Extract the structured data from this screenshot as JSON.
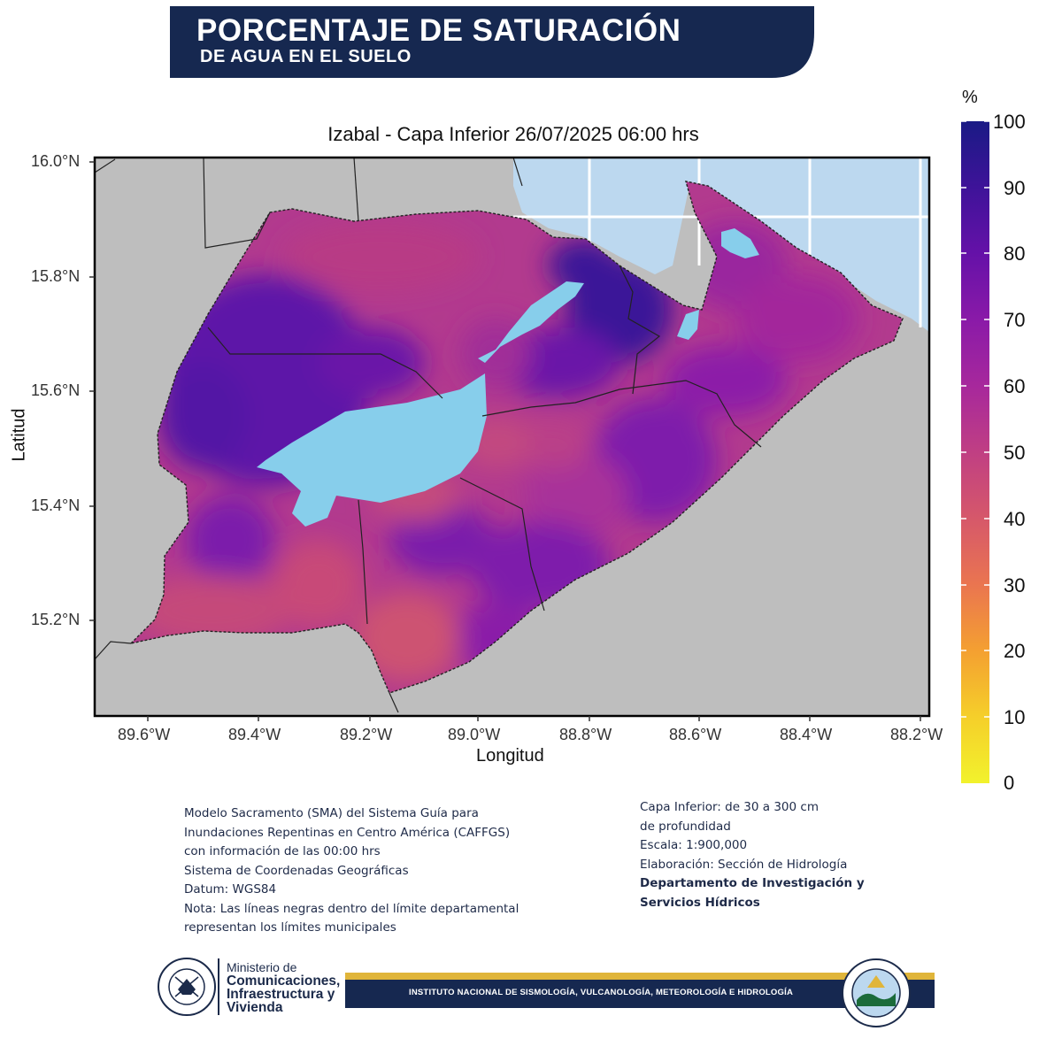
{
  "header": {
    "title": "PORCENTAJE DE SATURACIÓN",
    "subtitle": "DE AGUA EN EL SUELO"
  },
  "map": {
    "title": "Izabal - Capa Inferior 26/07/2025 06:00 hrs",
    "xlabel": "Longitud",
    "ylabel": "Latitud",
    "x_ticks": [
      "89.6°W",
      "89.4°W",
      "89.2°W",
      "89.0°W",
      "88.8°W",
      "88.6°W",
      "88.4°W",
      "88.2°W"
    ],
    "y_ticks": [
      "16.0°N",
      "15.8°N",
      "15.6°N",
      "15.4°N",
      "15.2°N"
    ]
  },
  "colorbar": {
    "unit": "%",
    "ticks": [
      "100",
      "90",
      "80",
      "70",
      "60",
      "50",
      "40",
      "30",
      "20",
      "10",
      "0"
    ],
    "colors": [
      "#1a1a85",
      "#3e1399",
      "#6511a8",
      "#8a1aa8",
      "#a7289c",
      "#c03f83",
      "#d6586a",
      "#ea7550",
      "#f4a031",
      "#f5cf2a",
      "#f2f22c"
    ]
  },
  "colors": {
    "banner": "#162850",
    "water": "#87ceeb",
    "sea": "#bcd8ef",
    "land": "#bebebe",
    "footer_gold": "#e0b53a"
  },
  "notes_left": [
    "Modelo Sacramento (SMA) del Sistema Guía para",
    "Inundaciones Repentinas en Centro América (CAFFGS)",
    "con información de las 00:00 hrs",
    "Sistema de Coordenadas Geográficas",
    "Datum: WGS84",
    "Nota: Las líneas negras dentro del límite departamental",
    "representan los límites municipales"
  ],
  "notes_right": [
    "Capa Inferior: de 30 a 300 cm",
    "de profundidad",
    "Escala: 1:900,000",
    "Elaboración: Sección de Hidrología"
  ],
  "notes_right_bold": [
    "Departamento de Investigación y",
    "Servicios Hídricos"
  ],
  "footer": {
    "ministry_prefix": "Ministerio de",
    "ministry_line1": "Comunicaciones,",
    "ministry_line2": "Infraestructura y",
    "ministry_line3": "Vivienda",
    "institute": "INSTITUTO NACIONAL DE SISMOLOGÍA, VULCANOLOGÍA, METEOROLOGÍA E HIDROLOGÍA"
  }
}
